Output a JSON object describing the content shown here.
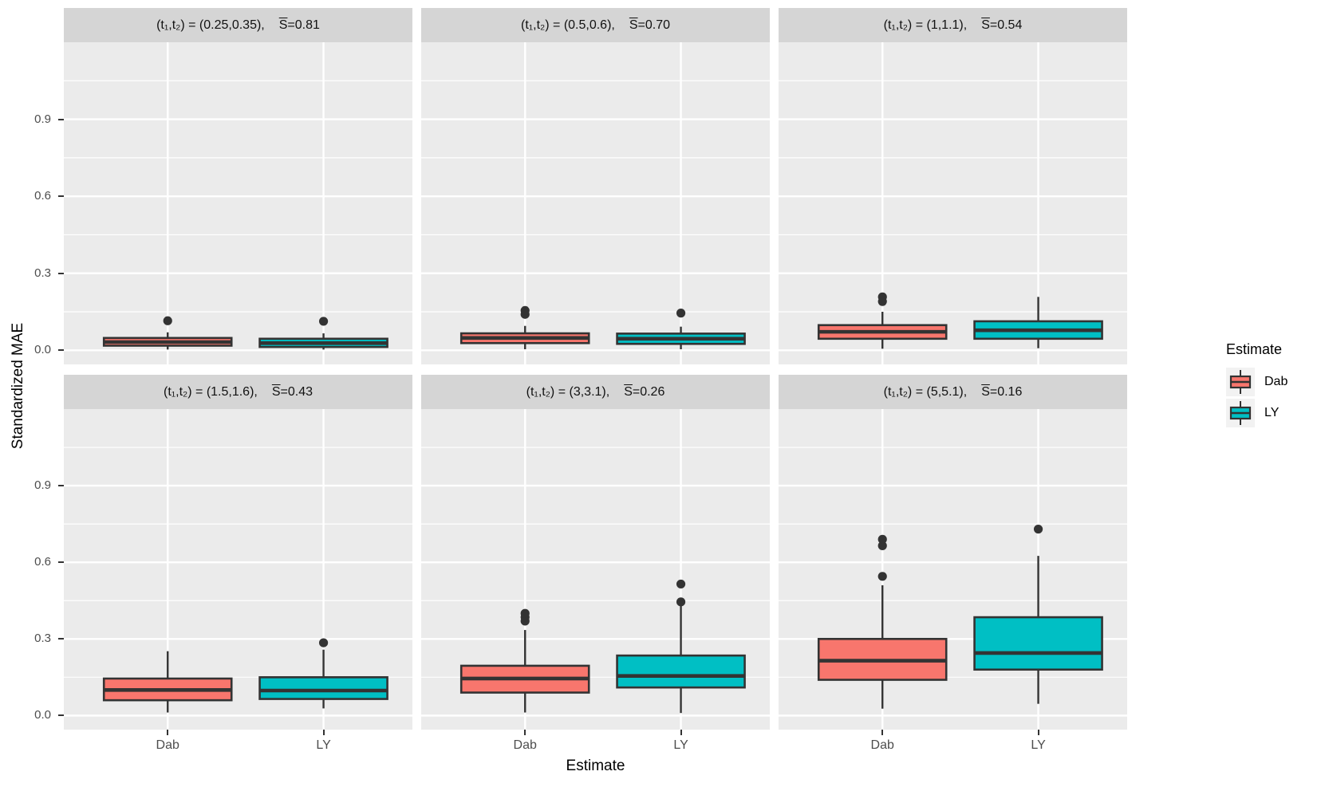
{
  "chart_data": {
    "type": "boxplot",
    "title": "",
    "xlabel": "Estimate",
    "ylabel": "Standardized MAE",
    "ylim": [
      -0.055,
      1.2
    ],
    "y_ticks": [
      0.0,
      0.3,
      0.6,
      0.9
    ],
    "y_minor_gridlines": [
      0.15,
      0.45,
      0.75,
      1.05
    ],
    "categories": [
      "Dab",
      "LY"
    ],
    "grid": "on",
    "legend": {
      "title": "Estimate",
      "position": "right",
      "entries": [
        {
          "label": "Dab",
          "color": "#F8766D"
        },
        {
          "label": "LY",
          "color": "#00BFC4"
        }
      ]
    },
    "colors": {
      "panel_background": "#ebebeb",
      "strip_background": "#d5d5d5",
      "gridline": "#ffffff",
      "box_outline": "#333333",
      "tick_text": "#4d4d4d"
    },
    "facets": [
      {
        "pair": "(t₁,t₂) = (0.25,0.35),",
        "s_symbol": "S",
        "s_value": "=0.81",
        "boxes": [
          {
            "group": "Dab",
            "whisker_low": 0.003,
            "q1": 0.018,
            "median": 0.032,
            "q3": 0.048,
            "whisker_high": 0.07,
            "outliers": [
              0.115
            ]
          },
          {
            "group": "LY",
            "whisker_low": 0.003,
            "q1": 0.013,
            "median": 0.028,
            "q3": 0.045,
            "whisker_high": 0.066,
            "outliers": [
              0.113
            ]
          }
        ]
      },
      {
        "pair": "(t₁,t₂) = (0.5,0.6),",
        "s_symbol": "S",
        "s_value": "=0.70",
        "boxes": [
          {
            "group": "Dab",
            "whisker_low": 0.004,
            "q1": 0.028,
            "median": 0.048,
            "q3": 0.066,
            "whisker_high": 0.095,
            "outliers": [
              0.14,
              0.155
            ]
          },
          {
            "group": "LY",
            "whisker_low": 0.004,
            "q1": 0.025,
            "median": 0.045,
            "q3": 0.065,
            "whisker_high": 0.092,
            "outliers": [
              0.145
            ]
          }
        ]
      },
      {
        "pair": "(t₁,t₂) = (1,1.1),",
        "s_symbol": "S",
        "s_value": "=0.54",
        "boxes": [
          {
            "group": "Dab",
            "whisker_low": 0.006,
            "q1": 0.045,
            "median": 0.072,
            "q3": 0.098,
            "whisker_high": 0.15,
            "outliers": [
              0.19,
              0.208
            ]
          },
          {
            "group": "LY",
            "whisker_low": 0.008,
            "q1": 0.045,
            "median": 0.078,
            "q3": 0.113,
            "whisker_high": 0.208,
            "outliers": []
          }
        ]
      },
      {
        "pair": "(t₁,t₂) = (1.5,1.6),",
        "s_symbol": "S",
        "s_value": "=0.43",
        "boxes": [
          {
            "group": "Dab",
            "whisker_low": 0.012,
            "q1": 0.06,
            "median": 0.1,
            "q3": 0.145,
            "whisker_high": 0.252,
            "outliers": []
          },
          {
            "group": "LY",
            "whisker_low": 0.028,
            "q1": 0.065,
            "median": 0.098,
            "q3": 0.15,
            "whisker_high": 0.258,
            "outliers": [
              0.285
            ]
          }
        ]
      },
      {
        "pair": "(t₁,t₂) = (3,3.1),",
        "s_symbol": "S",
        "s_value": "=0.26",
        "boxes": [
          {
            "group": "Dab",
            "whisker_low": 0.012,
            "q1": 0.09,
            "median": 0.145,
            "q3": 0.195,
            "whisker_high": 0.335,
            "outliers": [
              0.37,
              0.385,
              0.4
            ]
          },
          {
            "group": "LY",
            "whisker_low": 0.01,
            "q1": 0.11,
            "median": 0.155,
            "q3": 0.235,
            "whisker_high": 0.43,
            "outliers": [
              0.445,
              0.515
            ]
          }
        ]
      },
      {
        "pair": "(t₁,t₂) = (5,5.1),",
        "s_symbol": "S",
        "s_value": "=0.16",
        "boxes": [
          {
            "group": "Dab",
            "whisker_low": 0.027,
            "q1": 0.14,
            "median": 0.215,
            "q3": 0.3,
            "whisker_high": 0.51,
            "outliers": [
              0.545,
              0.665,
              0.69
            ]
          },
          {
            "group": "LY",
            "whisker_low": 0.046,
            "q1": 0.18,
            "median": 0.245,
            "q3": 0.385,
            "whisker_high": 0.625,
            "outliers": [
              0.73
            ]
          }
        ]
      }
    ]
  }
}
